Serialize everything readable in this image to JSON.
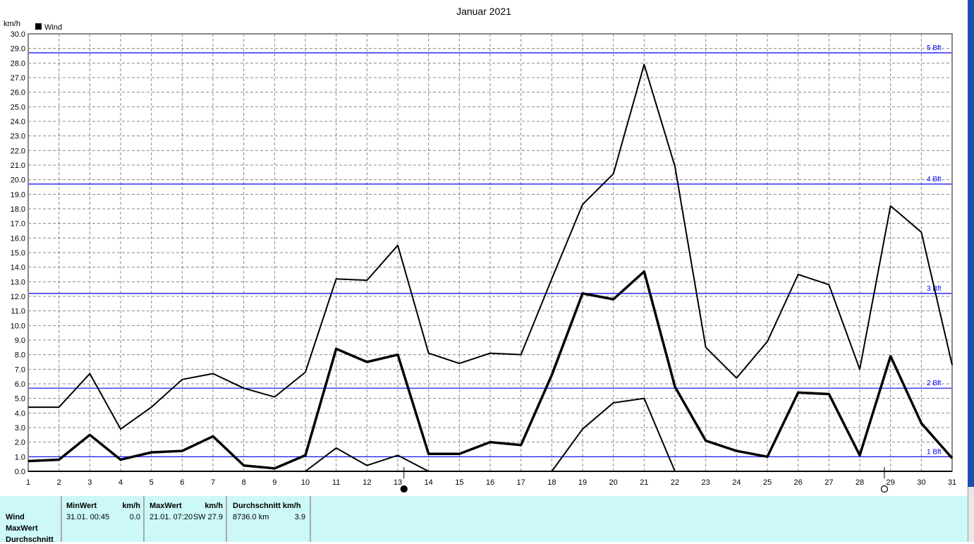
{
  "chart_data": {
    "type": "line",
    "title": "Januar 2021",
    "ylabel": "km/h",
    "ylim": [
      0,
      30
    ],
    "yticks": [
      "0.0",
      "1.0",
      "2.0",
      "3.0",
      "4.0",
      "5.0",
      "6.0",
      "7.0",
      "8.0",
      "9.0",
      "10.0",
      "11.0",
      "12.0",
      "13.0",
      "14.0",
      "15.0",
      "16.0",
      "17.0",
      "18.0",
      "19.0",
      "20.0",
      "21.0",
      "22.0",
      "23.0",
      "24.0",
      "25.0",
      "26.0",
      "27.0",
      "28.0",
      "29.0",
      "30.0"
    ],
    "x": [
      1,
      2,
      3,
      4,
      5,
      6,
      7,
      8,
      9,
      10,
      11,
      12,
      13,
      14,
      15,
      16,
      17,
      18,
      19,
      20,
      21,
      22,
      23,
      24,
      25,
      26,
      27,
      28,
      29,
      30,
      31
    ],
    "grid": true,
    "legend": {
      "label": "Wind",
      "position": "top-left"
    },
    "series": [
      {
        "values": [
          4.4,
          4.4,
          6.7,
          2.9,
          4.4,
          6.3,
          6.7,
          5.7,
          5.1,
          6.8,
          13.2,
          13.1,
          15.5,
          8.1,
          7.4,
          8.1,
          8.0,
          13.2,
          18.3,
          20.4,
          27.9,
          20.9,
          8.5,
          6.4,
          8.9,
          13.5,
          12.8,
          7.0,
          18.2,
          16.4,
          7.3
        ],
        "width": 2
      },
      {
        "values": [
          0.7,
          0.8,
          2.5,
          0.8,
          1.3,
          1.4,
          2.4,
          0.4,
          0.2,
          1.1,
          8.4,
          7.5,
          8.0,
          1.2,
          1.2,
          2.0,
          1.8,
          6.6,
          12.2,
          11.8,
          13.7,
          5.8,
          2.1,
          1.4,
          1.0,
          5.4,
          5.3,
          1.1,
          7.9,
          3.3,
          0.9
        ],
        "width": 3.5
      },
      {
        "values": [
          0,
          0,
          0,
          0,
          0,
          0,
          0,
          0,
          0,
          0,
          1.6,
          0.4,
          1.1,
          0,
          0,
          0,
          0,
          0,
          2.9,
          4.7,
          5.0,
          0,
          0,
          0,
          0,
          0,
          0,
          0,
          0,
          0,
          0
        ],
        "width": 2
      }
    ],
    "reference_lines": [
      {
        "label": "1 Bft",
        "value": 1.0
      },
      {
        "label": "2 Bft",
        "value": 5.7
      },
      {
        "label": "3 Bft",
        "value": 12.2
      },
      {
        "label": "4 Bft",
        "value": 19.7
      },
      {
        "label": "5 Bft",
        "value": 28.7
      }
    ],
    "reference_color": "#0000ff",
    "moon_phases": [
      {
        "day": 13.2,
        "phase": "new"
      },
      {
        "day": 28.8,
        "phase": "full"
      }
    ]
  },
  "summary": {
    "rows": [
      "Wind",
      "MaxWert",
      "Durchschnitt"
    ],
    "min": {
      "header": "MinWert",
      "unit": "km/h",
      "date": "31.01.  00:45",
      "value": "0.0"
    },
    "max": {
      "header": "MaxWert",
      "unit": "km/h",
      "date": "21.01.  07:20",
      "dir_value": "SW 27.9"
    },
    "avg": {
      "header": "Durchschnitt km/h",
      "distance": "8736.0 km",
      "value": "3.9"
    }
  }
}
